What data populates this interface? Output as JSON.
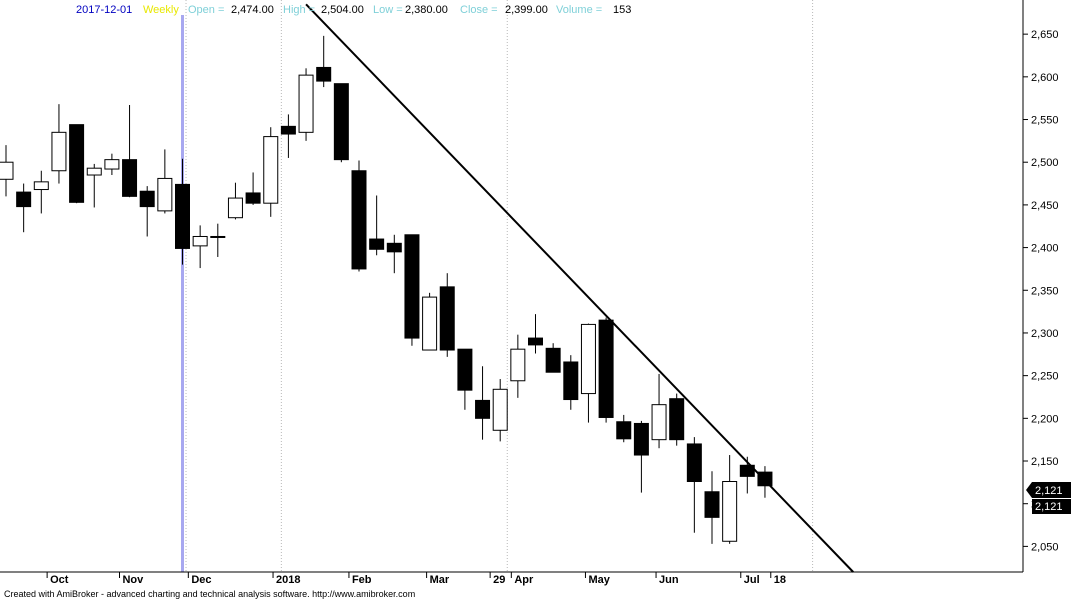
{
  "header": {
    "date": "2017-12-01",
    "period": "Weekly",
    "open_label": "Open =",
    "open": "2,474.00",
    "high_label": "High =",
    "high": "2,504.00",
    "low_label": "Low =",
    "low": "2,380.00",
    "close_label": "Close =",
    "close": "2,399.00",
    "volume_label": "Volume =",
    "volume": "153"
  },
  "footer": "Created with AmiBroker - advanced charting and technical analysis software. http://www.amibroker.com",
  "price_badges": [
    "2,121",
    "2,121"
  ],
  "colors": {
    "date": "#0000c0",
    "period": "#e8e800",
    "info_label": "#7fd0d8",
    "info_value": "#000000",
    "cursor_line": "#a8a8f0",
    "grid": "#b8b8b8",
    "badge_bg": "#000000",
    "badge_text": "#ffffff"
  },
  "chart_data": {
    "type": "candlestick",
    "ylim": [
      2020,
      2690
    ],
    "y_ticks": [
      2050,
      2100,
      2150,
      2200,
      2250,
      2300,
      2350,
      2400,
      2450,
      2500,
      2550,
      2600,
      2650
    ],
    "y_tick_labels": [
      "2,050",
      "2,100",
      "2,150",
      "2,200",
      "2,250",
      "2,300",
      "2,350",
      "2,400",
      "2,450",
      "2,500",
      "2,550",
      "2,600",
      "2,650"
    ],
    "x_labels": [
      {
        "label": "Oct",
        "index": 2.5
      },
      {
        "label": "Nov",
        "index": 6.6
      },
      {
        "label": "Dec",
        "index": 10.5
      },
      {
        "label": "2018",
        "index": 15.3
      },
      {
        "label": "Feb",
        "index": 19.6
      },
      {
        "label": "Mar",
        "index": 24.0
      },
      {
        "label": "29",
        "index": 27.6
      },
      {
        "label": "Apr",
        "index": 28.8
      },
      {
        "label": "May",
        "index": 33.0
      },
      {
        "label": "Jun",
        "index": 37.0
      },
      {
        "label": "Jul",
        "index": 41.8
      },
      {
        "label": "18",
        "index": 43.5
      }
    ],
    "cursor_index": 10,
    "candles": [
      {
        "o": 2480,
        "h": 2520,
        "l": 2460,
        "c": 2500
      },
      {
        "o": 2465,
        "h": 2475,
        "l": 2418,
        "c": 2448
      },
      {
        "o": 2468,
        "h": 2490,
        "l": 2440,
        "c": 2477
      },
      {
        "o": 2490,
        "h": 2568,
        "l": 2475,
        "c": 2535
      },
      {
        "o": 2544,
        "h": 2544,
        "l": 2452,
        "c": 2453
      },
      {
        "o": 2485,
        "h": 2498,
        "l": 2447,
        "c": 2493
      },
      {
        "o": 2492,
        "h": 2510,
        "l": 2485,
        "c": 2503
      },
      {
        "o": 2503,
        "h": 2567,
        "l": 2459,
        "c": 2460
      },
      {
        "o": 2466,
        "h": 2472,
        "l": 2413,
        "c": 2448
      },
      {
        "o": 2443,
        "h": 2515,
        "l": 2440,
        "c": 2481
      },
      {
        "o": 2474,
        "h": 2504,
        "l": 2380,
        "c": 2399
      },
      {
        "o": 2402,
        "h": 2426,
        "l": 2376,
        "c": 2413
      },
      {
        "o": 2413,
        "h": 2428,
        "l": 2389,
        "c": 2413
      },
      {
        "o": 2435,
        "h": 2476,
        "l": 2433,
        "c": 2458
      },
      {
        "o": 2464,
        "h": 2488,
        "l": 2450,
        "c": 2452
      },
      {
        "o": 2452,
        "h": 2541,
        "l": 2436,
        "c": 2530
      },
      {
        "o": 2542,
        "h": 2556,
        "l": 2505,
        "c": 2533
      },
      {
        "o": 2535,
        "h": 2610,
        "l": 2525,
        "c": 2602
      },
      {
        "o": 2611,
        "h": 2648,
        "l": 2588,
        "c": 2595
      },
      {
        "o": 2592,
        "h": 2592,
        "l": 2500,
        "c": 2503
      },
      {
        "o": 2490,
        "h": 2502,
        "l": 2372,
        "c": 2375
      },
      {
        "o": 2410,
        "h": 2461,
        "l": 2391,
        "c": 2398
      },
      {
        "o": 2405,
        "h": 2415,
        "l": 2370,
        "c": 2395
      },
      {
        "o": 2415,
        "h": 2415,
        "l": 2285,
        "c": 2294
      },
      {
        "o": 2280,
        "h": 2347,
        "l": 2280,
        "c": 2342
      },
      {
        "o": 2354,
        "h": 2370,
        "l": 2272,
        "c": 2280
      },
      {
        "o": 2281,
        "h": 2281,
        "l": 2210,
        "c": 2233
      },
      {
        "o": 2221,
        "h": 2261,
        "l": 2175,
        "c": 2200
      },
      {
        "o": 2186,
        "h": 2246,
        "l": 2173,
        "c": 2234
      },
      {
        "o": 2244,
        "h": 2298,
        "l": 2224,
        "c": 2281
      },
      {
        "o": 2294,
        "h": 2322,
        "l": 2276,
        "c": 2286
      },
      {
        "o": 2282,
        "h": 2288,
        "l": 2255,
        "c": 2254
      },
      {
        "o": 2266,
        "h": 2274,
        "l": 2210,
        "c": 2222
      },
      {
        "o": 2229,
        "h": 2311,
        "l": 2195,
        "c": 2310
      },
      {
        "o": 2315,
        "h": 2318,
        "l": 2195,
        "c": 2201
      },
      {
        "o": 2196,
        "h": 2204,
        "l": 2172,
        "c": 2176
      },
      {
        "o": 2194,
        "h": 2197,
        "l": 2113,
        "c": 2157
      },
      {
        "o": 2175,
        "h": 2252,
        "l": 2165,
        "c": 2216
      },
      {
        "o": 2223,
        "h": 2229,
        "l": 2168,
        "c": 2175
      },
      {
        "o": 2170,
        "h": 2178,
        "l": 2066,
        "c": 2126
      },
      {
        "o": 2114,
        "h": 2138,
        "l": 2053,
        "c": 2084
      },
      {
        "o": 2056,
        "h": 2157,
        "l": 2053,
        "c": 2126
      },
      {
        "o": 2145,
        "h": 2155,
        "l": 2112,
        "c": 2132
      },
      {
        "o": 2137,
        "h": 2144,
        "l": 2107,
        "c": 2121
      }
    ],
    "trendline": {
      "start": {
        "index": 17.0,
        "value": 2685
      },
      "end": {
        "index": 48.0,
        "value": 2020
      }
    }
  }
}
